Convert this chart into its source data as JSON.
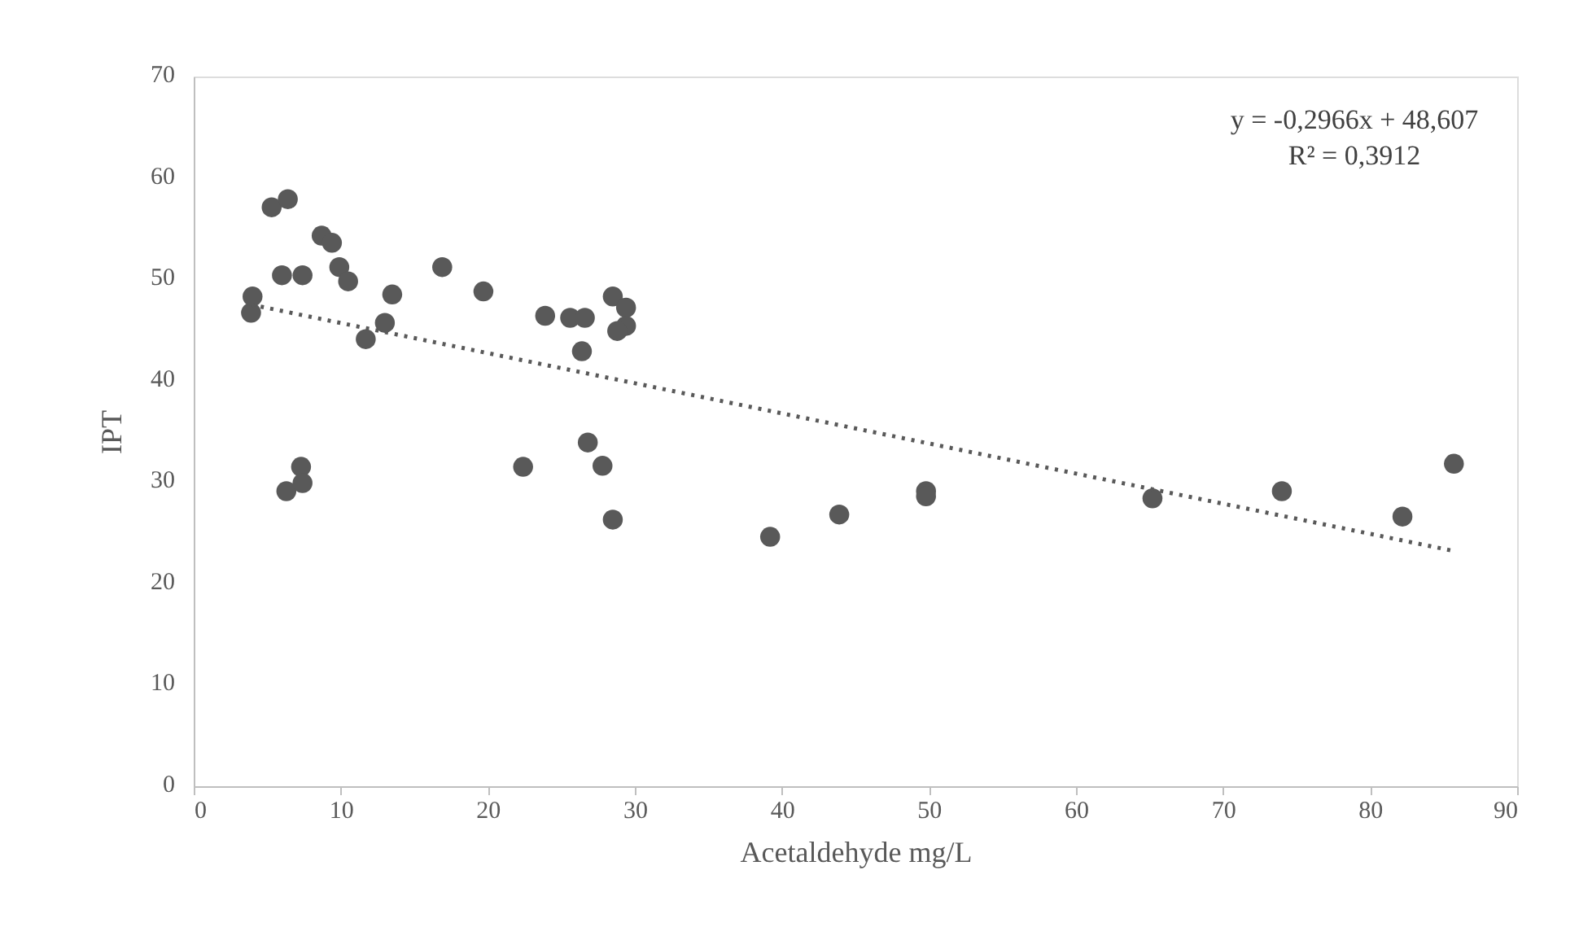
{
  "chart_data": {
    "type": "scatter",
    "xlabel": "Acetaldehyde  mg/L",
    "ylabel": "IPT",
    "xlim": [
      0,
      90
    ],
    "xticks": [
      0,
      10,
      20,
      30,
      40,
      50,
      60,
      70,
      80,
      90
    ],
    "ylim": [
      0,
      70
    ],
    "yticks": [
      0,
      10,
      20,
      30,
      40,
      50,
      60,
      70
    ],
    "grid": false,
    "series": [
      {
        "color": "#595959",
        "marker": "circle",
        "x": [
          3.9,
          4.0,
          5.3,
          6.4,
          6.0,
          7.4,
          6.3,
          7.3,
          7.4,
          8.7,
          9.4,
          9.9,
          10.5,
          11.7,
          13.0,
          13.5,
          16.9,
          19.7,
          22.4,
          23.9,
          25.6,
          26.6,
          26.4,
          26.8,
          27.8,
          28.5,
          28.5,
          29.4,
          29.4,
          28.8,
          39.2,
          43.9,
          49.8,
          49.8,
          65.2,
          74.0,
          82.2,
          85.7
        ],
        "values": [
          46.7,
          48.3,
          57.1,
          57.9,
          50.4,
          50.4,
          29.1,
          31.5,
          29.9,
          54.3,
          53.6,
          51.2,
          49.8,
          44.1,
          45.7,
          48.5,
          51.2,
          48.8,
          31.5,
          46.4,
          46.2,
          46.2,
          42.9,
          33.9,
          31.6,
          26.3,
          48.3,
          47.2,
          45.4,
          44.9,
          24.6,
          26.8,
          29.1,
          28.6,
          28.4,
          29.1,
          26.6,
          31.8
        ]
      },
      {
        "type": "line",
        "color": "#595959",
        "line_style": "dotted",
        "x": [
          3.9,
          85.7
        ],
        "values": [
          47.5,
          23.2
        ]
      }
    ],
    "annotations": [
      "y = -0,2966x + 48,607",
      "R² = 0,3912"
    ]
  }
}
